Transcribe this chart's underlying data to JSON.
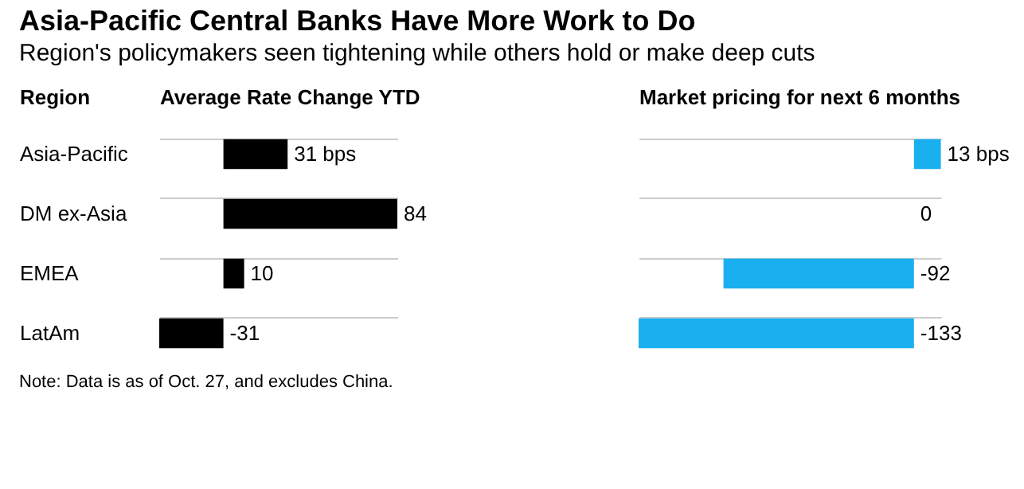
{
  "chart_data": [
    {
      "type": "bar",
      "orientation": "horizontal",
      "title": "Asia-Pacific Central Banks Have More Work to Do",
      "subtitle": "Region's policymakers seen tightening while others hold or make deep cuts",
      "ylabel": "Region",
      "xlabel": "Average Rate Change YTD",
      "categories": [
        "Asia-Pacific",
        "DM ex-Asia",
        "EMEA",
        "LatAm"
      ],
      "values": [
        31,
        84,
        10,
        -31
      ],
      "value_labels": [
        "31 bps",
        "84",
        "10",
        "-31"
      ],
      "color": "#000000",
      "grid": "y",
      "tick_labels": "y"
    },
    {
      "type": "bar",
      "orientation": "horizontal",
      "xlabel": "Market pricing for next 6 months",
      "categories": [
        "Asia-Pacific",
        "DM ex-Asia",
        "EMEA",
        "LatAm"
      ],
      "values": [
        13,
        0,
        -92,
        -133
      ],
      "value_labels": [
        "13 bps",
        "0",
        "-92",
        "-133"
      ],
      "color": "#1ab0f0",
      "grid": "y",
      "tick_labels": false,
      "annotations": [
        "Note: Data is as of Oct. 27, and excludes China."
      ]
    }
  ]
}
